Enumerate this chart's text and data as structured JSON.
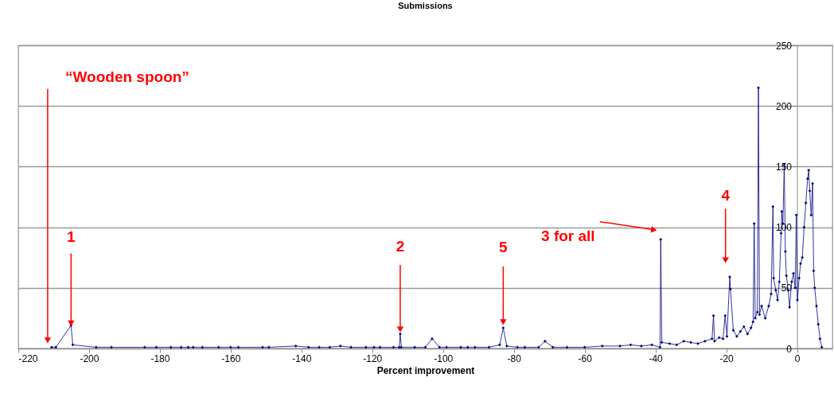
{
  "chart_data": {
    "type": "line",
    "title": "Submissions",
    "xlabel": "Percent improvement",
    "x": [
      -210.6,
      -209.4,
      -205.1,
      -204.6,
      -198,
      -193.7,
      -184.3,
      -181,
      -176.9,
      -174,
      -172,
      -170.6,
      -168,
      -163.4,
      -160,
      -157.8,
      -151,
      -149.2,
      -141.6,
      -138,
      -135,
      -132,
      -129,
      -126,
      -121.8,
      -119.5,
      -117.8,
      -114,
      -112.4,
      -112.1,
      -111.8,
      -108,
      -105,
      -103.1,
      -101,
      -99,
      -95,
      -93,
      -91,
      -87,
      -84,
      -83,
      -82,
      -79,
      -76.9,
      -73,
      -71.2,
      -69,
      -65,
      -60,
      -55,
      -50,
      -47,
      -44,
      -41,
      -38.7,
      -38.5,
      -38.2,
      -36,
      -34,
      -32,
      -30,
      -28,
      -26,
      -24,
      -23.6,
      -23.3,
      -22,
      -20.9,
      -20.3,
      -19.8,
      -19,
      -18.8,
      -18,
      -17,
      -16,
      -15,
      -14,
      -13,
      -12.4,
      -12.1,
      -11.8,
      -11.2,
      -10.9,
      -10.6,
      -10,
      -9,
      -8,
      -7.3,
      -6.8,
      -6.6,
      -6,
      -5.5,
      -5,
      -4.5,
      -4.3,
      -4,
      -3.6,
      -3.3,
      -3,
      -2.5,
      -2.1,
      -1.5,
      -1,
      -0.5,
      -0.2,
      0.1,
      0.6,
      1,
      1.5,
      2,
      2.5,
      3,
      3.3,
      3.6,
      4,
      4.4,
      4.7,
      5,
      5.5,
      6,
      6.5,
      7
    ],
    "series": [
      {
        "color": "#000080",
        "values": [
          1,
          1,
          19,
          3,
          1,
          1,
          1,
          1,
          1,
          1,
          1,
          1,
          1,
          1,
          1,
          1,
          1,
          1,
          2,
          1,
          1,
          1,
          2,
          1,
          1,
          1,
          1,
          1,
          1,
          12,
          1,
          1,
          1,
          8,
          1,
          1,
          1,
          1,
          1,
          1,
          3,
          17,
          2,
          1,
          1,
          1,
          6,
          1,
          1,
          1,
          2,
          2,
          3,
          2,
          3,
          1,
          90,
          5,
          4,
          3,
          6,
          5,
          4,
          6,
          8,
          27,
          6,
          9,
          8,
          27,
          10,
          59,
          49,
          15,
          10,
          14,
          18,
          12,
          17,
          22,
          103,
          25,
          30,
          215,
          28,
          35,
          25,
          35,
          45,
          117,
          58,
          48,
          40,
          55,
          95,
          113,
          103,
          152,
          80,
          60,
          48,
          34,
          55,
          62,
          50,
          110,
          40,
          58,
          70,
          75,
          100,
          120,
          140,
          147,
          130,
          110,
          136,
          64,
          50,
          35,
          20,
          8,
          1
        ]
      }
    ],
    "xlim": [
      -220,
      10
    ],
    "xticks": [
      -220,
      -200,
      -180,
      -160,
      -140,
      -120,
      -100,
      -80,
      -60,
      -40,
      -20,
      0
    ],
    "ylim": [
      0,
      250
    ],
    "yticks": [
      0,
      50,
      100,
      150,
      200,
      250
    ],
    "grid": "y",
    "marker": "diamond",
    "annotations": [
      {
        "text": "“Wooden spoon”",
        "x": -211.7,
        "y": 8
      },
      {
        "text": "1",
        "x": -205.1,
        "y": 22
      },
      {
        "text": "2",
        "x": -112.1,
        "y": 17
      },
      {
        "text": "5",
        "x": -83,
        "y": 23
      },
      {
        "text": "3 for all",
        "x": -40.4,
        "y": 98
      },
      {
        "text": "4",
        "x": -20.2,
        "y": 74
      }
    ]
  }
}
